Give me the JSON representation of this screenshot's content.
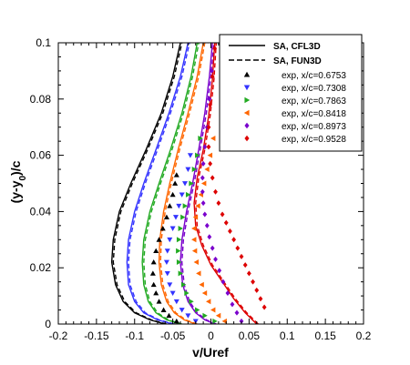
{
  "chart_data": {
    "type": "scatter",
    "title": "",
    "xlabel": "v/Uref",
    "ylabel_parts": {
      "a": "(y-y",
      "sub": "0",
      "b": ")/c"
    },
    "xlim": [
      -0.2,
      0.2
    ],
    "ylim": [
      0,
      0.1
    ],
    "x_ticks": [
      "-0.2",
      "-0.15",
      "-0.1",
      "-0.05",
      "0",
      "0.05",
      "0.1",
      "0.15",
      "0.2"
    ],
    "y_ticks": [
      "0",
      "0.02",
      "0.04",
      "0.06",
      "0.08",
      "0.1"
    ],
    "grid": false,
    "legend_position": "top-right",
    "legend": {
      "lines": [
        {
          "label": "SA, CFL3D",
          "style": "solid"
        },
        {
          "label": "SA, FUN3D",
          "style": "dashed"
        }
      ],
      "markers": [
        {
          "label": "exp, x/c=0.6753",
          "marker": "triangle-up",
          "color": "#000000"
        },
        {
          "label": "exp, x/c=0.7308",
          "marker": "triangle-down",
          "color": "#3333ff"
        },
        {
          "label": "exp, x/c=0.7863",
          "marker": "triangle-right",
          "color": "#22aa22"
        },
        {
          "label": "exp, x/c=0.8418",
          "marker": "triangle-left",
          "color": "#ff6600"
        },
        {
          "label": "exp, x/c=0.8973",
          "marker": "diamond",
          "color": "#7a00cc"
        },
        {
          "label": "exp, x/c=0.9528",
          "marker": "diamond",
          "color": "#dd0000"
        }
      ]
    },
    "series": [
      {
        "color": "#000000",
        "marker": "triangle-up",
        "cfd_solid": {
          "x": [
            -0.06,
            -0.08,
            -0.1,
            -0.115,
            -0.125,
            -0.13,
            -0.128,
            -0.12,
            -0.105,
            -0.085,
            -0.065,
            -0.05,
            -0.04
          ],
          "y": [
            0,
            0.0015,
            0.004,
            0.008,
            0.014,
            0.022,
            0.03,
            0.04,
            0.05,
            0.062,
            0.075,
            0.088,
            0.1
          ]
        },
        "cfd_dashed": {
          "x": [
            -0.058,
            -0.078,
            -0.098,
            -0.113,
            -0.123,
            -0.128,
            -0.126,
            -0.118,
            -0.103,
            -0.083,
            -0.063,
            -0.048,
            -0.038
          ],
          "y": [
            0,
            0.0015,
            0.004,
            0.008,
            0.014,
            0.022,
            0.03,
            0.04,
            0.05,
            0.062,
            0.075,
            0.088,
            0.1
          ]
        },
        "exp": {
          "x": [
            -0.045,
            -0.055,
            -0.062,
            -0.068,
            -0.072,
            -0.075,
            -0.076,
            -0.075,
            -0.072,
            -0.068,
            -0.063,
            -0.058,
            -0.054,
            -0.05,
            -0.047,
            -0.045
          ],
          "y": [
            0.001,
            0.003,
            0.005,
            0.008,
            0.011,
            0.014,
            0.018,
            0.022,
            0.026,
            0.03,
            0.034,
            0.038,
            0.042,
            0.046,
            0.05,
            0.053
          ]
        }
      },
      {
        "color": "#3333ff",
        "marker": "triangle-down",
        "cfd_solid": {
          "x": [
            -0.05,
            -0.07,
            -0.088,
            -0.1,
            -0.108,
            -0.11,
            -0.108,
            -0.1,
            -0.088,
            -0.072,
            -0.055,
            -0.04,
            -0.03
          ],
          "y": [
            0,
            0.0015,
            0.004,
            0.008,
            0.014,
            0.022,
            0.03,
            0.04,
            0.05,
            0.062,
            0.075,
            0.088,
            0.1
          ]
        },
        "cfd_dashed": {
          "x": [
            -0.048,
            -0.068,
            -0.086,
            -0.098,
            -0.106,
            -0.108,
            -0.106,
            -0.098,
            -0.086,
            -0.07,
            -0.053,
            -0.038,
            -0.028
          ],
          "y": [
            0,
            0.0015,
            0.004,
            0.008,
            0.014,
            0.022,
            0.03,
            0.04,
            0.05,
            0.062,
            0.075,
            0.088,
            0.1
          ]
        },
        "exp": {
          "x": [
            -0.02,
            -0.03,
            -0.038,
            -0.045,
            -0.05,
            -0.054,
            -0.057,
            -0.058,
            -0.057,
            -0.054,
            -0.05,
            -0.046,
            -0.042,
            -0.038,
            -0.034,
            -0.03,
            -0.027
          ],
          "y": [
            0.001,
            0.003,
            0.005,
            0.008,
            0.011,
            0.014,
            0.018,
            0.022,
            0.026,
            0.03,
            0.034,
            0.038,
            0.042,
            0.046,
            0.05,
            0.055,
            0.06
          ]
        }
      },
      {
        "color": "#22aa22",
        "marker": "triangle-right",
        "cfd_solid": {
          "x": [
            -0.04,
            -0.058,
            -0.072,
            -0.082,
            -0.088,
            -0.09,
            -0.088,
            -0.08,
            -0.068,
            -0.053,
            -0.038,
            -0.026,
            -0.018
          ],
          "y": [
            0,
            0.0015,
            0.004,
            0.008,
            0.014,
            0.022,
            0.03,
            0.04,
            0.05,
            0.062,
            0.075,
            0.088,
            0.1
          ]
        },
        "cfd_dashed": {
          "x": [
            -0.038,
            -0.056,
            -0.07,
            -0.08,
            -0.086,
            -0.088,
            -0.086,
            -0.078,
            -0.066,
            -0.051,
            -0.036,
            -0.024,
            -0.016
          ],
          "y": [
            0,
            0.0015,
            0.004,
            0.008,
            0.014,
            0.022,
            0.03,
            0.04,
            0.05,
            0.062,
            0.075,
            0.088,
            0.1
          ]
        },
        "exp": {
          "x": [
            0.005,
            -0.008,
            -0.018,
            -0.026,
            -0.032,
            -0.036,
            -0.04,
            -0.042,
            -0.043,
            -0.042,
            -0.04,
            -0.037,
            -0.034,
            -0.03,
            -0.026,
            -0.022,
            -0.018,
            -0.014
          ],
          "y": [
            0.001,
            0.003,
            0.005,
            0.008,
            0.011,
            0.014,
            0.018,
            0.022,
            0.026,
            0.03,
            0.034,
            0.038,
            0.042,
            0.046,
            0.05,
            0.055,
            0.06,
            0.066
          ]
        }
      },
      {
        "color": "#ff6600",
        "marker": "triangle-left",
        "cfd_solid": {
          "x": [
            -0.02,
            -0.035,
            -0.048,
            -0.058,
            -0.065,
            -0.068,
            -0.067,
            -0.062,
            -0.054,
            -0.043,
            -0.03,
            -0.018,
            -0.01
          ],
          "y": [
            0,
            0.0015,
            0.004,
            0.008,
            0.014,
            0.022,
            0.03,
            0.04,
            0.05,
            0.062,
            0.075,
            0.088,
            0.1
          ]
        },
        "cfd_dashed": {
          "x": [
            -0.018,
            -0.033,
            -0.046,
            -0.056,
            -0.063,
            -0.066,
            -0.065,
            -0.06,
            -0.052,
            -0.041,
            -0.028,
            -0.016,
            -0.008
          ],
          "y": [
            0,
            0.0015,
            0.004,
            0.008,
            0.014,
            0.022,
            0.03,
            0.04,
            0.05,
            0.062,
            0.075,
            0.088,
            0.1
          ]
        },
        "exp": {
          "x": [
            0.018,
            0.01,
            0.003,
            -0.003,
            -0.008,
            -0.012,
            -0.016,
            -0.019,
            -0.021,
            -0.022,
            -0.022,
            -0.02,
            -0.017,
            -0.013,
            -0.009,
            -0.005,
            -0.001,
            0.003
          ],
          "y": [
            0.001,
            0.003,
            0.005,
            0.008,
            0.011,
            0.014,
            0.018,
            0.022,
            0.026,
            0.03,
            0.034,
            0.038,
            0.042,
            0.046,
            0.05,
            0.055,
            0.06,
            0.066
          ]
        }
      },
      {
        "color": "#7a00cc",
        "marker": "diamond",
        "cfd_solid": {
          "x": [
            0.005,
            -0.008,
            -0.02,
            -0.03,
            -0.037,
            -0.04,
            -0.038,
            -0.032,
            -0.024,
            -0.016,
            -0.008,
            -0.002,
            0.002
          ],
          "y": [
            0,
            0.0015,
            0.004,
            0.008,
            0.014,
            0.022,
            0.03,
            0.04,
            0.05,
            0.062,
            0.075,
            0.088,
            0.1
          ]
        },
        "cfd_dashed": {
          "x": [
            0.007,
            -0.006,
            -0.018,
            -0.028,
            -0.035,
            -0.038,
            -0.036,
            -0.03,
            -0.022,
            -0.014,
            -0.006,
            0,
            0.004
          ],
          "y": [
            0,
            0.0015,
            0.004,
            0.008,
            0.014,
            0.022,
            0.03,
            0.04,
            0.05,
            0.062,
            0.075,
            0.088,
            0.1
          ]
        },
        "exp": {
          "x": [
            0.04,
            0.034,
            0.028,
            0.022,
            0.016,
            0.011,
            0.006,
            0.002,
            -0.002,
            -0.005,
            -0.008,
            -0.01,
            -0.011,
            -0.011,
            -0.01,
            -0.008,
            -0.005,
            -0.002,
            0.001
          ],
          "y": [
            0.001,
            0.004,
            0.007,
            0.011,
            0.015,
            0.019,
            0.023,
            0.027,
            0.031,
            0.035,
            0.039,
            0.043,
            0.047,
            0.052,
            0.057,
            0.063,
            0.07,
            0.08,
            0.09
          ]
        }
      },
      {
        "color": "#dd0000",
        "marker": "diamond",
        "cfd_solid": {
          "x": [
            0.06,
            0.045,
            0.03,
            0.015,
            0.0,
            -0.012,
            -0.02,
            -0.022,
            -0.018,
            -0.01,
            -0.003,
            0.002,
            0.005
          ],
          "y": [
            0,
            0.004,
            0.009,
            0.015,
            0.021,
            0.028,
            0.035,
            0.043,
            0.052,
            0.062,
            0.074,
            0.087,
            0.1
          ]
        },
        "cfd_dashed": {
          "x": [
            0.062,
            0.047,
            0.032,
            0.017,
            0.002,
            -0.01,
            -0.018,
            -0.02,
            -0.016,
            -0.008,
            -0.001,
            0.004,
            0.007
          ],
          "y": [
            0,
            0.004,
            0.009,
            0.015,
            0.021,
            0.028,
            0.035,
            0.043,
            0.052,
            0.062,
            0.074,
            0.087,
            0.1
          ]
        },
        "exp": {
          "x": [
            0.07,
            0.065,
            0.06,
            0.055,
            0.05,
            0.045,
            0.04,
            0.035,
            0.03,
            0.025,
            0.02,
            0.015,
            0.01,
            0.006,
            0.002,
            -0.001,
            -0.003,
            -0.003,
            -0.001,
            0.002,
            0.005
          ],
          "y": [
            0.006,
            0.009,
            0.012,
            0.015,
            0.018,
            0.021,
            0.024,
            0.027,
            0.03,
            0.033,
            0.036,
            0.039,
            0.043,
            0.047,
            0.052,
            0.057,
            0.063,
            0.07,
            0.078,
            0.088,
            0.098
          ]
        }
      }
    ]
  }
}
